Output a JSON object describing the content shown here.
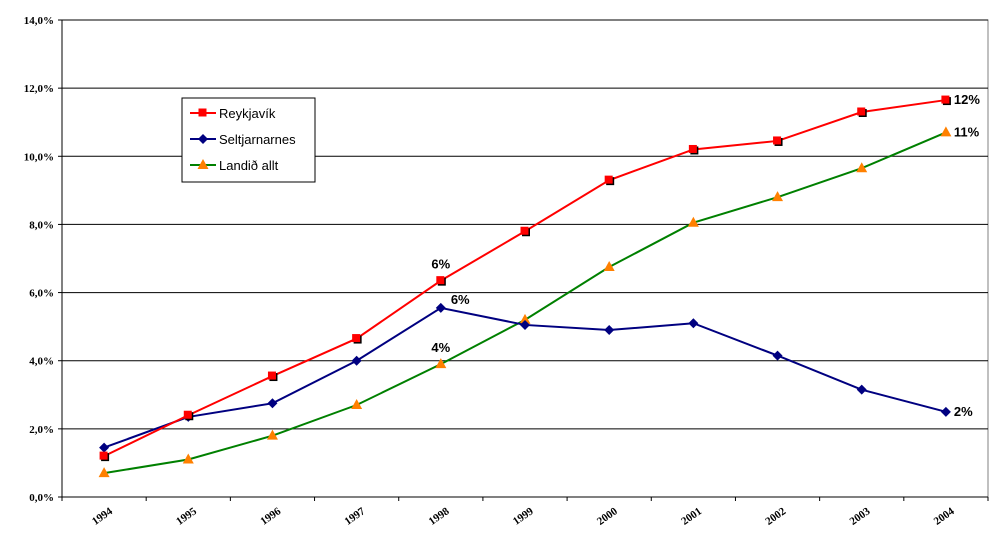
{
  "chart_data": {
    "type": "line",
    "title": "",
    "xlabel": "",
    "ylabel": "",
    "categories": [
      "1994",
      "1995",
      "1996",
      "1997",
      "1998",
      "1999",
      "2000",
      "2001",
      "2002",
      "2003",
      "2004"
    ],
    "ylim": [
      0,
      14
    ],
    "yticks": [
      0,
      2,
      4,
      6,
      8,
      10,
      12,
      14
    ],
    "ytick_labels": [
      "0,0%",
      "2,0%",
      "4,0%",
      "6,0%",
      "8,0%",
      "10,0%",
      "12,0%",
      "14,0%"
    ],
    "grid": "horizontal",
    "legend_position": "upper-left",
    "series": [
      {
        "name": "Reykjavík",
        "color": "#ff0000",
        "marker": "square",
        "values": [
          1.2,
          2.4,
          3.55,
          4.65,
          6.35,
          7.8,
          9.3,
          10.2,
          10.45,
          11.3,
          11.65
        ],
        "labels": [
          {
            "index": 4,
            "text": "6%",
            "pos": "above"
          },
          {
            "index": 10,
            "text": "12%",
            "pos": "right"
          }
        ]
      },
      {
        "name": "Seltjarnarnes",
        "color": "#000080",
        "marker": "diamond",
        "values": [
          1.45,
          2.35,
          2.75,
          4.0,
          5.55,
          5.05,
          4.9,
          5.1,
          4.15,
          3.15,
          2.5
        ],
        "labels": [
          {
            "index": 4,
            "text": "6%",
            "pos": "right-above"
          },
          {
            "index": 10,
            "text": "2%",
            "pos": "right"
          }
        ]
      },
      {
        "name": "Landið allt",
        "color": "#008000",
        "marker_color": "#ff8000",
        "marker": "triangle",
        "values": [
          0.7,
          1.1,
          1.8,
          2.7,
          3.9,
          5.2,
          6.75,
          8.05,
          8.8,
          9.65,
          10.7
        ],
        "labels": [
          {
            "index": 4,
            "text": "4%",
            "pos": "above"
          },
          {
            "index": 10,
            "text": "11%",
            "pos": "right"
          }
        ]
      }
    ]
  }
}
